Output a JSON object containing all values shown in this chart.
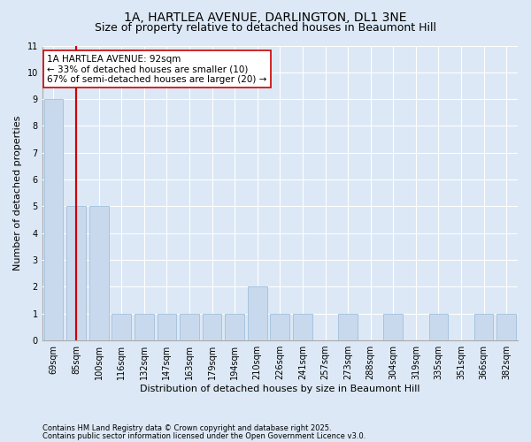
{
  "title1": "1A, HARTLEA AVENUE, DARLINGTON, DL1 3NE",
  "title2": "Size of property relative to detached houses in Beaumont Hill",
  "xlabel": "Distribution of detached houses by size in Beaumont Hill",
  "ylabel": "Number of detached properties",
  "categories": [
    "69sqm",
    "85sqm",
    "100sqm",
    "116sqm",
    "132sqm",
    "147sqm",
    "163sqm",
    "179sqm",
    "194sqm",
    "210sqm",
    "226sqm",
    "241sqm",
    "257sqm",
    "273sqm",
    "288sqm",
    "304sqm",
    "319sqm",
    "335sqm",
    "351sqm",
    "366sqm",
    "382sqm"
  ],
  "values": [
    9,
    5,
    5,
    1,
    1,
    1,
    1,
    1,
    1,
    2,
    1,
    1,
    0,
    1,
    0,
    1,
    0,
    1,
    0,
    1,
    1
  ],
  "bar_color": "#c9d9ed",
  "bar_edge_color": "#a8c4de",
  "vline_x_index": 1,
  "vline_color": "#cc0000",
  "annotation_text": "1A HARTLEA AVENUE: 92sqm\n← 33% of detached houses are smaller (10)\n67% of semi-detached houses are larger (20) →",
  "annotation_box_color": "#ffffff",
  "annotation_box_edge": "#cc0000",
  "ylim": [
    0,
    11
  ],
  "yticks": [
    0,
    1,
    2,
    3,
    4,
    5,
    6,
    7,
    8,
    9,
    10,
    11
  ],
  "footer1": "Contains HM Land Registry data © Crown copyright and database right 2025.",
  "footer2": "Contains public sector information licensed under the Open Government Licence v3.0.",
  "bg_color": "#dce8f5",
  "plot_bg_color": "#dce8f5",
  "grid_color": "#ffffff",
  "title_fontsize": 10,
  "subtitle_fontsize": 9,
  "tick_fontsize": 7,
  "ylabel_fontsize": 8,
  "xlabel_fontsize": 8,
  "annotation_fontsize": 7.5,
  "footer_fontsize": 6
}
